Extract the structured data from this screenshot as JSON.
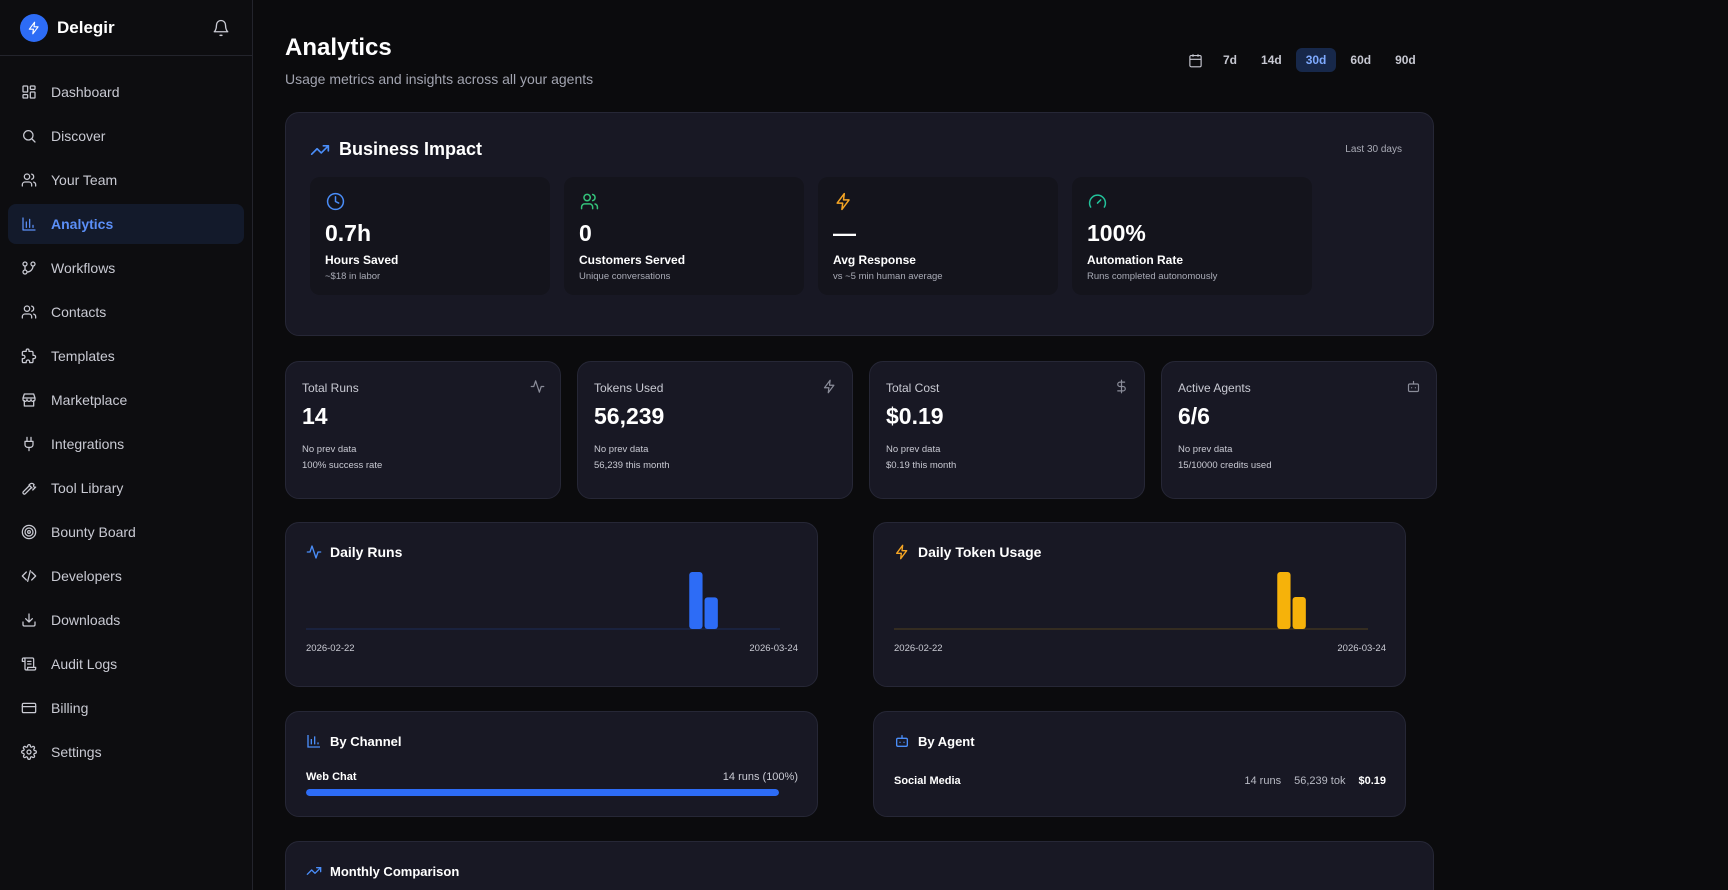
{
  "brand": {
    "name": "Delegir"
  },
  "sidebar": {
    "items": [
      {
        "label": "Dashboard",
        "icon": "dashboard-icon"
      },
      {
        "label": "Discover",
        "icon": "search-icon"
      },
      {
        "label": "Your Team",
        "icon": "users-icon"
      },
      {
        "label": "Analytics",
        "icon": "bar-chart-icon",
        "active": true
      },
      {
        "label": "Workflows",
        "icon": "workflow-icon"
      },
      {
        "label": "Contacts",
        "icon": "contacts-icon"
      },
      {
        "label": "Templates",
        "icon": "puzzle-icon"
      },
      {
        "label": "Marketplace",
        "icon": "store-icon"
      },
      {
        "label": "Integrations",
        "icon": "plug-icon"
      },
      {
        "label": "Tool Library",
        "icon": "hammer-icon"
      },
      {
        "label": "Bounty Board",
        "icon": "target-icon"
      },
      {
        "label": "Developers",
        "icon": "code-icon"
      },
      {
        "label": "Downloads",
        "icon": "download-icon"
      },
      {
        "label": "Audit Logs",
        "icon": "scroll-icon"
      },
      {
        "label": "Billing",
        "icon": "credit-card-icon"
      },
      {
        "label": "Settings",
        "icon": "gear-icon"
      }
    ]
  },
  "header": {
    "title": "Analytics",
    "subtitle": "Usage metrics and insights across all your agents",
    "ranges": [
      "7d",
      "14d",
      "30d",
      "60d",
      "90d"
    ],
    "active_range": "30d"
  },
  "business_impact": {
    "title": "Business Impact",
    "period": "Last 30 days",
    "tiles": [
      {
        "icon": "clock-icon",
        "value": "0.7h",
        "label": "Hours Saved",
        "sub": "~$18 in labor",
        "color": "#4a8df8"
      },
      {
        "icon": "users-icon",
        "value": "0",
        "label": "Customers Served",
        "sub": "Unique conversations",
        "color": "#34c27a"
      },
      {
        "icon": "bolt-icon",
        "value": "—",
        "label": "Avg Response",
        "sub": "vs ~5 min human average",
        "color": "#f5a524"
      },
      {
        "icon": "gauge-icon",
        "value": "100%",
        "label": "Automation Rate",
        "sub": "Runs completed autonomously",
        "color": "#22c29a"
      }
    ]
  },
  "stats": [
    {
      "label": "Total Runs",
      "value": "14",
      "prev": "No prev data",
      "detail": "100% success rate",
      "icon": "activity-icon"
    },
    {
      "label": "Tokens Used",
      "value": "56,239",
      "prev": "No prev data",
      "detail": "56,239 this month",
      "icon": "bolt-icon"
    },
    {
      "label": "Total Cost",
      "value": "$0.19",
      "prev": "No prev data",
      "detail": "$0.19 this month",
      "icon": "dollar-icon"
    },
    {
      "label": "Active Agents",
      "value": "6/6",
      "prev": "No prev data",
      "detail": "15/10000 credits used",
      "icon": "bot-icon"
    }
  ],
  "daily_runs": {
    "title": "Daily Runs",
    "x_start": "2026-02-22",
    "x_end": "2026-03-24",
    "color": "#2d6cf6"
  },
  "daily_tokens": {
    "title": "Daily Token Usage",
    "x_start": "2026-02-22",
    "x_end": "2026-03-24",
    "color": "#f6b20a"
  },
  "chart_data": [
    {
      "type": "bar",
      "title": "Daily Runs",
      "x_start": "2026-02-22",
      "x_end": "2026-03-24",
      "x": [
        "2026-02-22",
        "2026-02-23",
        "2026-02-24",
        "2026-02-25",
        "2026-02-26",
        "2026-02-27",
        "2026-02-28",
        "2026-03-01",
        "2026-03-02",
        "2026-03-03",
        "2026-03-04",
        "2026-03-05",
        "2026-03-06",
        "2026-03-07",
        "2026-03-08",
        "2026-03-09",
        "2026-03-10",
        "2026-03-11",
        "2026-03-12",
        "2026-03-13",
        "2026-03-14",
        "2026-03-15",
        "2026-03-16",
        "2026-03-17",
        "2026-03-18",
        "2026-03-19",
        "2026-03-20",
        "2026-03-21",
        "2026-03-22",
        "2026-03-23",
        "2026-03-24"
      ],
      "values": [
        0,
        0,
        0,
        0,
        0,
        0,
        0,
        0,
        0,
        0,
        0,
        0,
        0,
        0,
        0,
        0,
        0,
        0,
        0,
        0,
        0,
        0,
        0,
        0,
        0,
        9,
        5,
        0,
        0,
        0,
        0
      ]
    },
    {
      "type": "bar",
      "title": "Daily Token Usage",
      "x_start": "2026-02-22",
      "x_end": "2026-03-24",
      "x": [
        "2026-02-22",
        "2026-02-23",
        "2026-02-24",
        "2026-02-25",
        "2026-02-26",
        "2026-02-27",
        "2026-02-28",
        "2026-03-01",
        "2026-03-02",
        "2026-03-03",
        "2026-03-04",
        "2026-03-05",
        "2026-03-06",
        "2026-03-07",
        "2026-03-08",
        "2026-03-09",
        "2026-03-10",
        "2026-03-11",
        "2026-03-12",
        "2026-03-13",
        "2026-03-14",
        "2026-03-15",
        "2026-03-16",
        "2026-03-17",
        "2026-03-18",
        "2026-03-19",
        "2026-03-20",
        "2026-03-21",
        "2026-03-22",
        "2026-03-23",
        "2026-03-24"
      ],
      "values": [
        0,
        0,
        0,
        0,
        0,
        0,
        0,
        0,
        0,
        0,
        0,
        0,
        0,
        0,
        0,
        0,
        0,
        0,
        0,
        0,
        0,
        0,
        0,
        0,
        0,
        36000,
        20239,
        0,
        0,
        0,
        0
      ]
    }
  ],
  "by_channel": {
    "title": "By Channel",
    "items": [
      {
        "name": "Web Chat",
        "value": "14 runs (100%)",
        "percent": 100
      }
    ]
  },
  "by_agent": {
    "title": "By Agent",
    "items": [
      {
        "name": "Social Media",
        "runs": "14 runs",
        "tokens": "56,239 tok",
        "cost": "$0.19"
      }
    ]
  },
  "monthly": {
    "title": "Monthly Comparison"
  }
}
